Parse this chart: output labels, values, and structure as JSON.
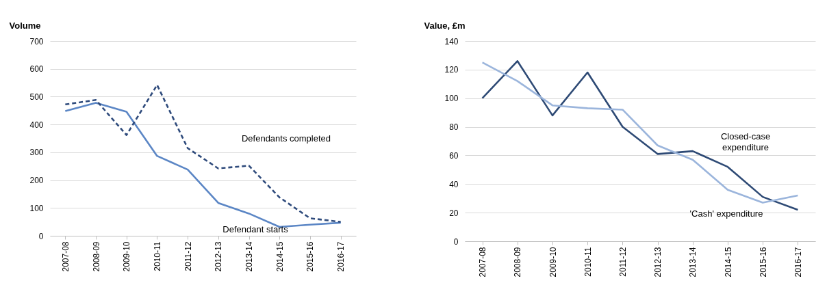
{
  "chart_data": [
    {
      "type": "line",
      "ylabel": "Volume",
      "categories": [
        "2007-08",
        "2008-09",
        "2009-10",
        "2010-11",
        "2011-12",
        "2012-13",
        "2013-14",
        "2014-15",
        "2015-16",
        "2016-17"
      ],
      "ylim": [
        0,
        700
      ],
      "yticks": [
        0,
        100,
        200,
        300,
        400,
        500,
        600,
        700
      ],
      "grid": "y",
      "legend": false,
      "marker": "none",
      "series": [
        {
          "name": "Defendant starts",
          "color": "#5b86c5",
          "line_style": "solid",
          "values": [
            448,
            478,
            446,
            287,
            238,
            118,
            80,
            32,
            40,
            47
          ]
        },
        {
          "name": "Defendants completed",
          "color": "#2f4b7c",
          "line_style": "dashed",
          "values": [
            472,
            488,
            362,
            542,
            315,
            242,
            252,
            138,
            63,
            50
          ]
        }
      ]
    },
    {
      "type": "line",
      "ylabel": "Value, £m",
      "categories": [
        "2007-08",
        "2008-09",
        "2009-10",
        "2010-11",
        "2011-12",
        "2012-13",
        "2013-14",
        "2014-15",
        "2015-16",
        "2016-17"
      ],
      "ylim": [
        0,
        140
      ],
      "yticks": [
        0,
        20,
        40,
        60,
        80,
        100,
        120,
        140
      ],
      "grid": "y",
      "legend": false,
      "marker": "none",
      "series": [
        {
          "name": "Closed-case expenditure",
          "color": "#2e4a75",
          "line_style": "solid",
          "values": [
            100,
            126,
            88,
            118,
            80,
            61,
            63,
            52,
            31,
            22
          ]
        },
        {
          "name": "'Cash' expenditure",
          "color": "#9bb5dc",
          "line_style": "solid",
          "values": [
            125,
            112,
            95,
            93,
            92,
            67,
            57,
            36,
            27,
            32
          ]
        }
      ]
    }
  ]
}
